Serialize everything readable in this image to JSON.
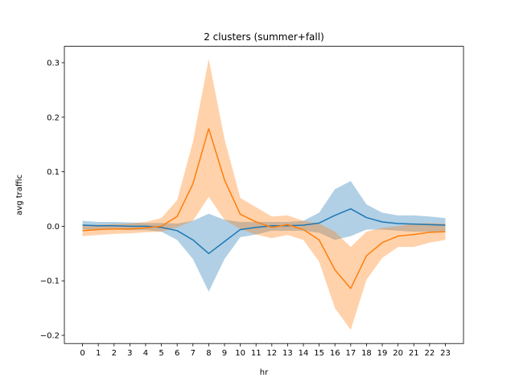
{
  "chart_data": {
    "type": "line",
    "title": "2 clusters (summer+fall)",
    "xlabel": "hr",
    "ylabel": "avg traffic",
    "xlim": [
      -1.15,
      24.15
    ],
    "ylim": [
      -0.215,
      0.33
    ],
    "grid": false,
    "legend": "none",
    "x": [
      0,
      1,
      2,
      3,
      4,
      5,
      6,
      7,
      8,
      9,
      10,
      11,
      12,
      13,
      14,
      15,
      16,
      17,
      18,
      19,
      20,
      21,
      22,
      23
    ],
    "x_ticks": [
      0,
      1,
      2,
      3,
      4,
      5,
      6,
      7,
      8,
      9,
      10,
      11,
      12,
      13,
      14,
      15,
      16,
      17,
      18,
      19,
      20,
      21,
      22,
      23
    ],
    "y_ticks": [
      -0.2,
      -0.1,
      0.0,
      0.1,
      0.2,
      0.3
    ],
    "y_tick_labels": [
      "−0.2",
      "−0.1",
      "0.0",
      "0.1",
      "0.2",
      "0.3"
    ],
    "series": [
      {
        "color": "#1f77b4",
        "band_color": "#1f77b4",
        "band_opacity": 0.35,
        "mean": [
          0.002,
          0.001,
          0.001,
          0.0,
          0.0,
          -0.002,
          -0.008,
          -0.025,
          -0.05,
          -0.028,
          -0.006,
          -0.002,
          0.001,
          0.001,
          0.002,
          0.006,
          0.02,
          0.032,
          0.016,
          0.008,
          0.005,
          0.004,
          0.003,
          0.002
        ],
        "upper": [
          0.01,
          0.008,
          0.008,
          0.007,
          0.006,
          0.006,
          0.005,
          0.01,
          0.023,
          0.012,
          0.008,
          0.008,
          0.008,
          0.008,
          0.01,
          0.025,
          0.068,
          0.083,
          0.04,
          0.025,
          0.02,
          0.02,
          0.018,
          0.015
        ],
        "lower": [
          -0.006,
          -0.006,
          -0.006,
          -0.007,
          -0.007,
          -0.01,
          -0.025,
          -0.06,
          -0.12,
          -0.06,
          -0.02,
          -0.015,
          -0.008,
          -0.008,
          -0.008,
          -0.012,
          -0.025,
          -0.018,
          -0.006,
          -0.006,
          -0.008,
          -0.01,
          -0.01,
          -0.01
        ]
      },
      {
        "color": "#ff7f0e",
        "band_color": "#ff7f0e",
        "band_opacity": 0.35,
        "mean": [
          -0.008,
          -0.006,
          -0.005,
          -0.005,
          -0.003,
          0.0,
          0.018,
          0.078,
          0.179,
          0.085,
          0.022,
          0.008,
          -0.002,
          0.003,
          -0.006,
          -0.025,
          -0.08,
          -0.114,
          -0.054,
          -0.03,
          -0.018,
          -0.015,
          -0.011,
          -0.01
        ],
        "upper": [
          0.002,
          0.003,
          0.004,
          0.005,
          0.008,
          0.015,
          0.048,
          0.155,
          0.307,
          0.16,
          0.052,
          0.035,
          0.018,
          0.02,
          0.01,
          0.005,
          -0.01,
          -0.038,
          -0.01,
          -0.003,
          0.0,
          0.005,
          0.006,
          0.005
        ],
        "lower": [
          -0.018,
          -0.016,
          -0.014,
          -0.013,
          -0.011,
          -0.01,
          -0.002,
          0.01,
          0.054,
          0.012,
          -0.005,
          -0.015,
          -0.022,
          -0.016,
          -0.025,
          -0.065,
          -0.15,
          -0.19,
          -0.098,
          -0.058,
          -0.038,
          -0.038,
          -0.03,
          -0.025
        ]
      }
    ]
  }
}
